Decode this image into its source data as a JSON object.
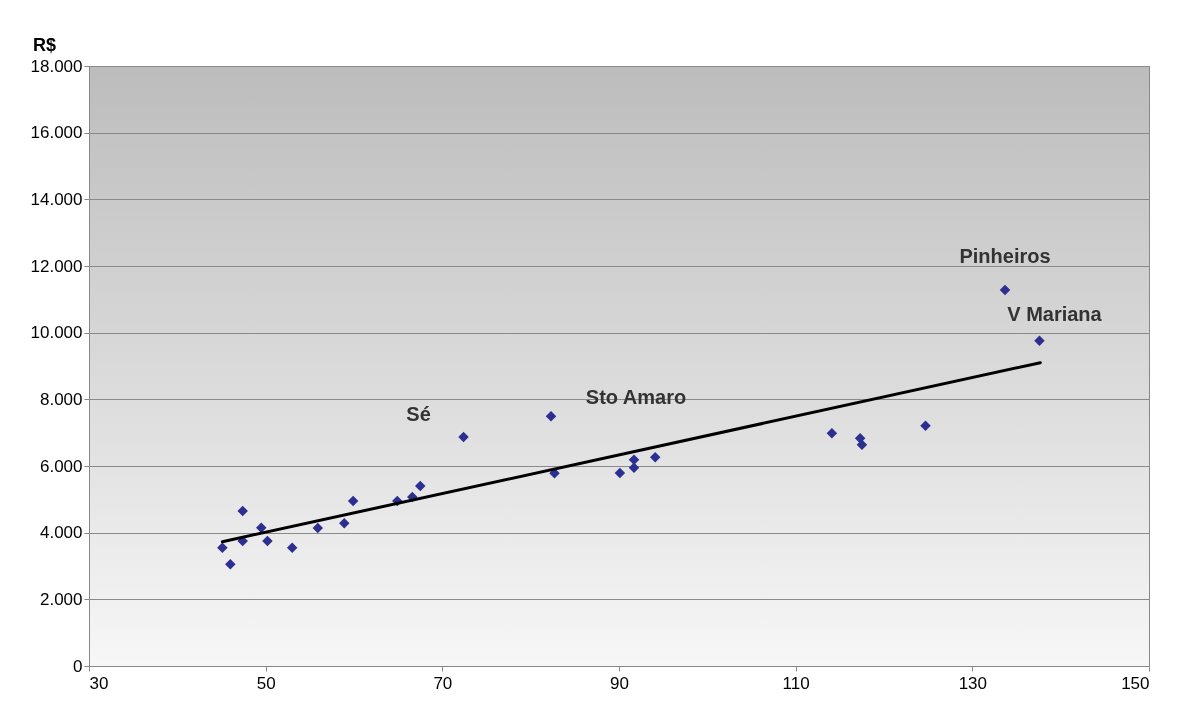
{
  "chart_data": {
    "type": "scatter",
    "ylabel": "R$",
    "grid": "y",
    "xlim": [
      30,
      150
    ],
    "xticks": [
      30,
      50,
      70,
      90,
      110,
      130,
      150
    ],
    "ylim": [
      0,
      18000
    ],
    "yticks": [
      0,
      {
        "value": 2000,
        "label": "2.000"
      },
      {
        "value": 4000,
        "label": "4.000"
      },
      {
        "value": 6000,
        "label": "6.000"
      },
      {
        "value": 8000,
        "label": "8.000"
      },
      {
        "value": 10000,
        "label": "10.000"
      },
      {
        "value": 12000,
        "label": "12.000"
      },
      {
        "value": 14000,
        "label": "14.000"
      },
      {
        "value": 16000,
        "label": "16.000"
      },
      {
        "value": 18000,
        "label": "18.000"
      }
    ],
    "series": [
      {
        "marker": "diamond",
        "color": "#2b2f8f",
        "x": [
          45.1,
          46.0,
          47.4,
          47.4,
          49.5,
          50.2,
          53.0,
          55.9,
          58.9,
          59.9,
          64.9,
          66.6,
          67.5,
          72.4,
          82.3,
          82.7,
          90.1,
          91.7,
          91.7,
          94.1,
          114.1,
          117.3,
          117.5,
          124.7,
          133.7,
          137.6
        ],
        "values": [
          3550,
          3050,
          4650,
          3750,
          4150,
          3750,
          3550,
          4140,
          4280,
          4950,
          4950,
          5070,
          5400,
          6870,
          7490,
          5780,
          5790,
          6190,
          5950,
          6260,
          6980,
          6830,
          6640,
          7210,
          11280,
          9760
        ]
      },
      {
        "type": "line",
        "color": "#000000",
        "x": [
          45.1,
          137.7
        ],
        "values": [
          3730,
          9100
        ]
      }
    ],
    "annotations": [
      {
        "text": "Sé",
        "x": 72.4,
        "y": 6870
      },
      {
        "text": "Sto Amaro",
        "x": 82.3,
        "y": 7490
      },
      {
        "text": "Pinheiros",
        "x": 133.7,
        "y": 11280
      },
      {
        "text": "V Mariana",
        "x": 137.6,
        "y": 9760
      }
    ]
  }
}
